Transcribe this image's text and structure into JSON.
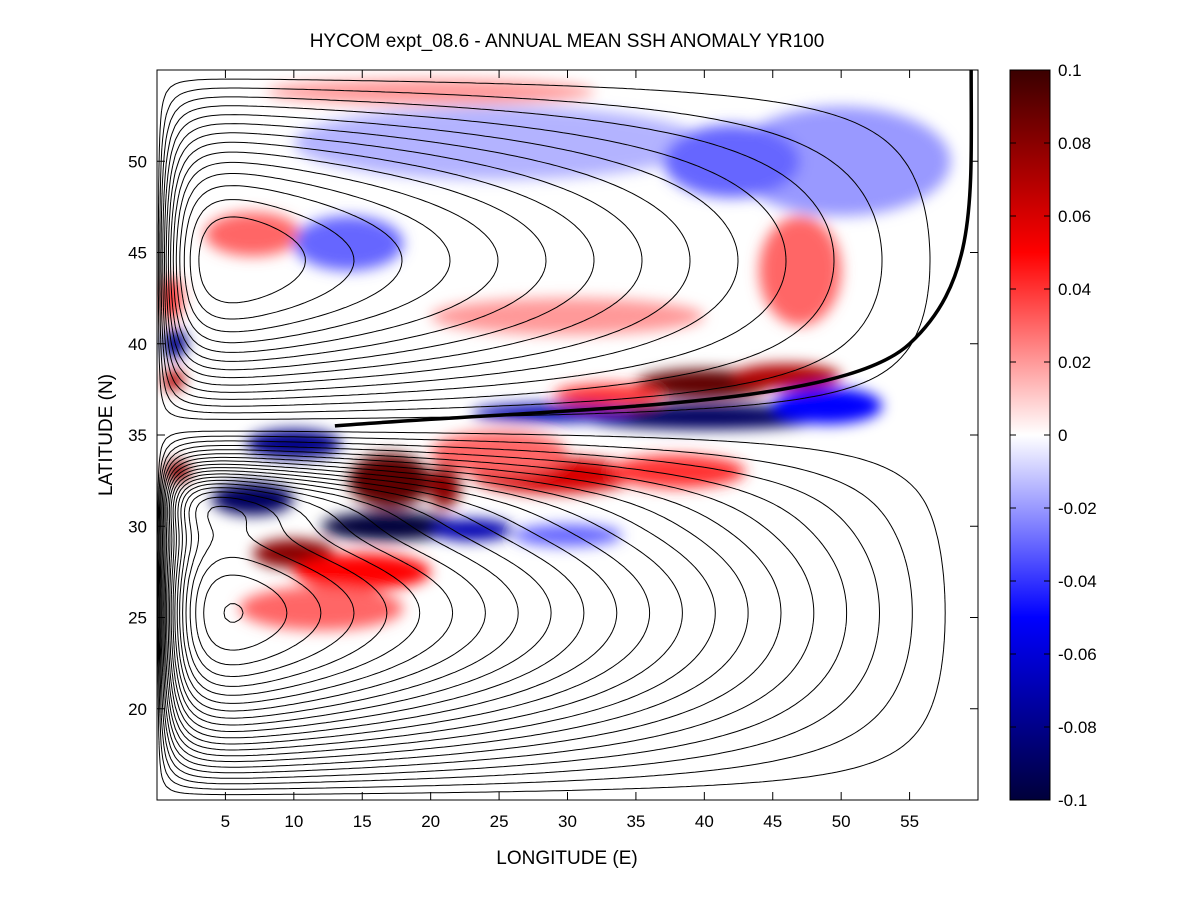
{
  "chart_data": {
    "type": "heatmap",
    "title": "HYCOM expt_08.6 - ANNUAL MEAN SSH ANOMALY YR100",
    "xlabel": "LONGITUDE (E)",
    "ylabel": "LATITUDE (N)",
    "xlim": [
      0,
      60
    ],
    "ylim": [
      15,
      55
    ],
    "xticks": [
      5,
      10,
      15,
      20,
      25,
      30,
      35,
      40,
      45,
      50,
      55
    ],
    "yticks": [
      20,
      25,
      30,
      35,
      40,
      45,
      50
    ],
    "colorbar": {
      "range": [
        -0.1,
        0.1
      ],
      "ticks": [
        "0.1",
        "0.08",
        "0.06",
        "0.04",
        "0.02",
        "0",
        "-0.02",
        "-0.04",
        "-0.06",
        "-0.08",
        "-0.1"
      ],
      "colormap": [
        "#00003a",
        "#0000ff",
        "#ffffff",
        "#ff0000",
        "#3a0000"
      ]
    },
    "overlay": "black contour lines of mean SSH (double-gyre, western-intensified)",
    "anomaly_features": [
      {
        "lon": 40,
        "lat": 37.8,
        "dlon": 5,
        "dlat": 0.8,
        "value": 0.09
      },
      {
        "lon": 46,
        "lat": 38.2,
        "dlon": 4,
        "dlat": 0.7,
        "value": 0.07
      },
      {
        "lon": 33,
        "lat": 37.2,
        "dlon": 4,
        "dlat": 0.6,
        "value": 0.04
      },
      {
        "lon": 40,
        "lat": 36.0,
        "dlon": 9,
        "dlat": 0.7,
        "value": -0.09
      },
      {
        "lon": 29,
        "lat": 36.2,
        "dlon": 6,
        "dlat": 0.5,
        "value": -0.07
      },
      {
        "lon": 49,
        "lat": 36.6,
        "dlon": 4,
        "dlat": 1.0,
        "value": -0.05
      },
      {
        "lon": 10,
        "lat": 34.5,
        "dlon": 3.5,
        "dlat": 0.8,
        "value": -0.08
      },
      {
        "lon": 17,
        "lat": 32.5,
        "dlon": 3,
        "dlat": 1.5,
        "value": 0.09
      },
      {
        "lon": 21,
        "lat": 32.2,
        "dlon": 1.2,
        "dlat": 1.2,
        "value": 0.08
      },
      {
        "lon": 29,
        "lat": 32.8,
        "dlon": 6,
        "dlat": 1.0,
        "value": 0.06
      },
      {
        "lon": 38,
        "lat": 33.0,
        "dlon": 5,
        "dlat": 0.9,
        "value": 0.04
      },
      {
        "lon": 25,
        "lat": 34.0,
        "dlon": 5,
        "dlat": 1.2,
        "value": 0.03
      },
      {
        "lon": 7,
        "lat": 31.5,
        "dlon": 3,
        "dlat": 0.9,
        "value": -0.09
      },
      {
        "lon": 17,
        "lat": 30.0,
        "dlon": 5,
        "dlat": 0.8,
        "value": -0.1
      },
      {
        "lon": 23,
        "lat": 29.8,
        "dlon": 3,
        "dlat": 0.6,
        "value": -0.07
      },
      {
        "lon": 30,
        "lat": 29.5,
        "dlon": 4,
        "dlat": 0.6,
        "value": -0.03
      },
      {
        "lon": 10,
        "lat": 28.5,
        "dlon": 3,
        "dlat": 0.8,
        "value": 0.08
      },
      {
        "lon": 15,
        "lat": 27.5,
        "dlon": 5,
        "dlat": 1.0,
        "value": 0.05
      },
      {
        "lon": 12,
        "lat": 25.5,
        "dlon": 6,
        "dlat": 1.2,
        "value": 0.03
      },
      {
        "lon": 1.5,
        "lat": 33.0,
        "dlon": 1,
        "dlat": 0.6,
        "value": 0.08
      },
      {
        "lon": 1.2,
        "lat": 38.0,
        "dlon": 0.8,
        "dlat": 0.6,
        "value": 0.07
      },
      {
        "lon": 1.3,
        "lat": 40.0,
        "dlon": 0.9,
        "dlat": 0.8,
        "value": -0.08
      },
      {
        "lon": 1.0,
        "lat": 42.5,
        "dlon": 0.8,
        "dlat": 1.2,
        "value": 0.04
      },
      {
        "lon": 7,
        "lat": 46.0,
        "dlon": 3.5,
        "dlat": 1.2,
        "value": 0.03
      },
      {
        "lon": 30,
        "lat": 41.5,
        "dlon": 10,
        "dlat": 1.0,
        "value": 0.02
      },
      {
        "lon": 47,
        "lat": 44.0,
        "dlon": 3,
        "dlat": 3,
        "value": 0.03
      },
      {
        "lon": 50,
        "lat": 50.0,
        "dlon": 8,
        "dlat": 3,
        "value": -0.02
      },
      {
        "lon": 25,
        "lat": 51.0,
        "dlon": 15,
        "dlat": 2,
        "value": -0.015
      },
      {
        "lon": 20,
        "lat": 53.8,
        "dlon": 12,
        "dlat": 0.7,
        "value": 0.02
      },
      {
        "lon": 14,
        "lat": 45.5,
        "dlon": 4,
        "dlat": 1.5,
        "value": -0.03
      },
      {
        "lon": 42,
        "lat": 50.0,
        "dlon": 5,
        "dlat": 2,
        "value": -0.03
      }
    ]
  }
}
